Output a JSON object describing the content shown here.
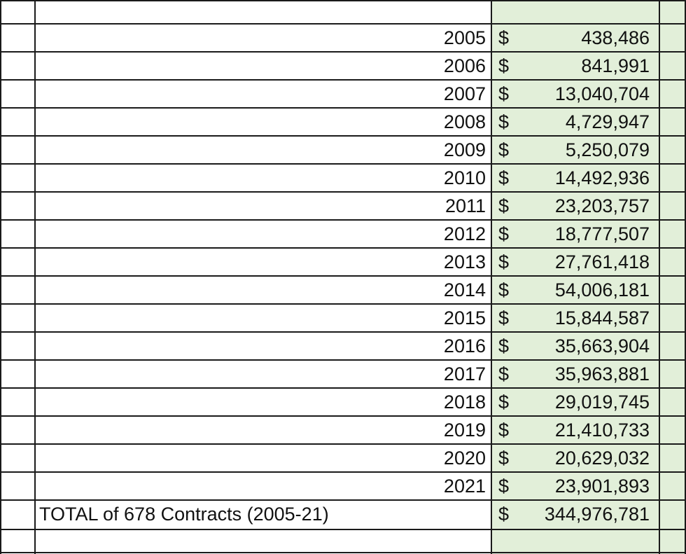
{
  "table": {
    "currency_symbol": "$",
    "rows": [
      {
        "year": "2005",
        "amount": "438,486"
      },
      {
        "year": "2006",
        "amount": "841,991"
      },
      {
        "year": "2007",
        "amount": "13,040,704"
      },
      {
        "year": "2008",
        "amount": "4,729,947"
      },
      {
        "year": "2009",
        "amount": "5,250,079"
      },
      {
        "year": "2010",
        "amount": "14,492,936"
      },
      {
        "year": "2011",
        "amount": "23,203,757"
      },
      {
        "year": "2012",
        "amount": "18,777,507"
      },
      {
        "year": "2013",
        "amount": "27,761,418"
      },
      {
        "year": "2014",
        "amount": "54,006,181"
      },
      {
        "year": "2015",
        "amount": "15,844,587"
      },
      {
        "year": "2016",
        "amount": "35,663,904"
      },
      {
        "year": "2017",
        "amount": "35,963,881"
      },
      {
        "year": "2018",
        "amount": "29,019,745"
      },
      {
        "year": "2019",
        "amount": "21,410,733"
      },
      {
        "year": "2020",
        "amount": "20,629,032"
      },
      {
        "year": "2021",
        "amount": "23,901,893"
      }
    ],
    "total": {
      "label": "TOTAL of 678 Contracts (2005-21)",
      "amount": "344,976,781"
    }
  },
  "colors": {
    "highlight": "#e2efd9",
    "grid": "#1a1a1a"
  }
}
